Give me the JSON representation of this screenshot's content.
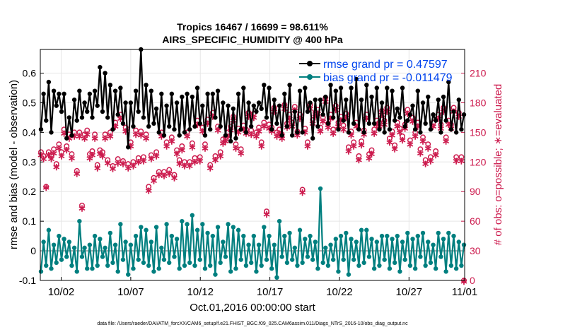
{
  "chart_data": {
    "type": "line",
    "title": "Tropics 16467 / 16699 = 98.611%",
    "subtitle": "AIRS_SPECIFIC_HUMIDITY @ 400 hPa",
    "xlabel": "Oct.01,2016 00:00:00 start",
    "ylabel": "rmse and bias (model - observation)",
    "ylabel_right": "# of obs: o=possible; ∗=evaluated",
    "footnote": "data file: /Users/raeder/DAI/ATM_forcXX/CAM6_setup/f.e21.FHIST_BGC.f09_025.CAM6assim.011/Diags_NTrS_2016-10/obs_diag_output.nc",
    "xlim": [
      0.5,
      31.0
    ],
    "ylim": [
      -0.1,
      0.68
    ],
    "ylim_right": [
      0,
      234
    ],
    "x_ticks": [
      2,
      7,
      12,
      17,
      22,
      27,
      32
    ],
    "x_tick_labels": [
      "10/02",
      "10/07",
      "10/12",
      "10/17",
      "10/22",
      "10/27",
      "11/01"
    ],
    "y_ticks": [
      -0.1,
      0,
      0.1,
      0.2,
      0.3,
      0.4,
      0.5,
      0.6
    ],
    "y_tick_labels": [
      "-0.1",
      "0",
      "0.1",
      "0.2",
      "0.3",
      "0.4",
      "0.5",
      "0.6"
    ],
    "y_right_ticks": [
      0,
      30,
      60,
      90,
      120,
      150,
      180,
      210
    ],
    "y_right_tick_labels": [
      "0",
      "30",
      "60",
      "90",
      "120",
      "150",
      "180",
      "210"
    ],
    "legend_position": "top-right",
    "colors": {
      "rmse": "#000000",
      "bias": "#007f7f",
      "obs": "#cc1a4d",
      "zero_line": "#aaaaaa",
      "legend_text": "#0044ee",
      "right_axis": "#cc1a4d"
    },
    "series": [
      {
        "name": "rmse grand pr = 0.47597",
        "axis": "left",
        "values": [
          0.41,
          0.53,
          0.44,
          0.57,
          0.4,
          0.54,
          0.49,
          0.53,
          0.47,
          0.53,
          0.38,
          0.45,
          0.39,
          0.51,
          0.44,
          0.54,
          0.45,
          0.5,
          0.47,
          0.53,
          0.45,
          0.54,
          0.49,
          0.62,
          0.47,
          0.6,
          0.45,
          0.56,
          0.41,
          0.54,
          0.46,
          0.55,
          0.43,
          0.5,
          0.35,
          0.5,
          0.42,
          0.54,
          0.47,
          0.68,
          0.45,
          0.56,
          0.42,
          0.54,
          0.43,
          0.48,
          0.4,
          0.53,
          0.39,
          0.49,
          0.42,
          0.53,
          0.41,
          0.5,
          0.39,
          0.52,
          0.4,
          0.53,
          0.41,
          0.52,
          0.42,
          0.55,
          0.43,
          0.49,
          0.39,
          0.53,
          0.41,
          0.53,
          0.45,
          0.54,
          0.42,
          0.5,
          0.39,
          0.49,
          0.37,
          0.48,
          0.38,
          0.53,
          0.41,
          0.55,
          0.4,
          0.5,
          0.42,
          0.49,
          0.47,
          0.5,
          0.48,
          0.56,
          0.45,
          0.55,
          0.41,
          0.51,
          0.43,
          0.49,
          0.39,
          0.53,
          0.42,
          0.56,
          0.39,
          0.47,
          0.4,
          0.54,
          0.4,
          0.55,
          0.47,
          0.5,
          0.38,
          0.51,
          0.42,
          0.51,
          0.46,
          0.52,
          0.43,
          0.56,
          0.45,
          0.54,
          0.41,
          0.55,
          0.44,
          0.51,
          0.4,
          0.55,
          0.43,
          0.58,
          0.41,
          0.51,
          0.4,
          0.56,
          0.43,
          0.52,
          0.43,
          0.55,
          0.41,
          0.5,
          0.4,
          0.55,
          0.41,
          0.54,
          0.44,
          0.48,
          0.45,
          0.55,
          0.42,
          0.44,
          0.46,
          0.49,
          0.41,
          0.54,
          0.4,
          0.5,
          0.43,
          0.52,
          0.41,
          0.46,
          0.44,
          0.51,
          0.4,
          0.52,
          0.44,
          0.57,
          0.41,
          0.47,
          0.4,
          0.51,
          0.41,
          0.46
        ]
      },
      {
        "name": "bias grand pr = -0.011479",
        "axis": "left",
        "values": [
          -0.07,
          0.03,
          -0.05,
          0.07,
          -0.06,
          0.02,
          -0.04,
          0.05,
          -0.03,
          0.04,
          -0.02,
          0.03,
          -0.05,
          0.01,
          -0.07,
          0.1,
          -0.02,
          0.01,
          -0.06,
          0.02,
          -0.06,
          0.05,
          -0.05,
          0.04,
          -0.02,
          0.01,
          -0.05,
          0.06,
          -0.04,
          0.02,
          -0.07,
          0.09,
          -0.03,
          0.03,
          -0.08,
          0.02,
          -0.06,
          0.05,
          -0.03,
          0.08,
          -0.04,
          0.07,
          -0.05,
          0.03,
          -0.07,
          0.08,
          -0.06,
          0.01,
          -0.03,
          0.09,
          -0.04,
          0.05,
          -0.02,
          0.04,
          -0.06,
          0.1,
          -0.05,
          0.09,
          -0.04,
          0.12,
          -0.05,
          0.07,
          -0.03,
          0.09,
          -0.06,
          0.06,
          -0.05,
          0.05,
          -0.08,
          0.08,
          -0.04,
          0.03,
          -0.02,
          0.09,
          -0.07,
          0.08,
          -0.06,
          0.07,
          -0.03,
          0.05,
          -0.05,
          0.02,
          -0.04,
          0.05,
          -0.07,
          0.02,
          -0.05,
          0.08,
          -0.03,
          0.05,
          -0.06,
          0.02,
          -0.09,
          0.1,
          -0.02,
          0.05,
          -0.04,
          0.06,
          -0.03,
          0.01,
          -0.05,
          0.07,
          -0.04,
          0.04,
          -0.02,
          0.05,
          -0.03,
          0.03,
          -0.06,
          0.21,
          -0.04,
          0.01,
          -0.05,
          0.02,
          -0.03,
          0.04,
          -0.07,
          0.05,
          -0.03,
          0.06,
          -0.08,
          0.04,
          -0.03,
          0.03,
          -0.05,
          0.07,
          -0.04,
          0.07,
          -0.02,
          0.04,
          -0.06,
          0.03,
          -0.05,
          0.05,
          -0.03,
          0.05,
          -0.06,
          0.04,
          -0.04,
          0.05,
          -0.07,
          0.03,
          -0.03,
          0.06,
          -0.05,
          0.04,
          -0.06,
          0.05,
          -0.02,
          0.06,
          -0.05,
          0.03,
          -0.04,
          0.02,
          -0.06,
          0.06,
          -0.02,
          0.04,
          -0.07,
          0.06,
          -0.05,
          0.05,
          -0.06,
          0.03,
          -0.05,
          0.02
        ]
      },
      {
        "name": "# obs possible",
        "axis": "right",
        "marker": "o",
        "values": [
          130,
          126,
          95,
          130,
          127,
          133,
          118,
          138,
          130,
          153,
          136,
          148,
          128,
          150,
          111,
          150,
          76,
          148,
          152,
          128,
          131,
          148,
          117,
          132,
          130,
          148,
          122,
          150,
          116,
          160,
          123,
          168,
          121,
          155,
          118,
          140,
          120,
          152,
          124,
          151,
          125,
          148,
          95,
          127,
          104,
          130,
          110,
          150,
          110,
          140,
          112,
          145,
          107,
          132,
          122,
          136,
          120,
          150,
          120,
          139,
          124,
          162,
          125,
          155,
          138,
          163,
          117,
          170,
          126,
          156,
          130,
          143,
          145,
          150,
          156,
          166,
          138,
          154,
          133,
          157,
          153,
          170,
          152,
          169,
          150,
          155,
          140,
          160,
          70,
          158,
          155,
          175,
          150,
          153,
          148,
          178,
          159,
          168,
          160,
          176,
          151,
          168,
          92,
          154,
          140,
          178,
          163,
          170,
          173,
          155,
          165,
          185,
          159,
          168,
          153,
          177,
          160,
          166,
          157,
          169,
          135,
          151,
          140,
          160,
          126,
          141,
          152,
          168,
          128,
          132,
          153,
          162,
          160,
          172,
          162,
          175,
          144,
          151,
          137,
          160,
          154,
          146,
          158,
          173,
          142,
          165,
          150,
          160,
          133,
          145,
          122,
          138,
          125,
          160,
          131,
          168,
          158,
          175,
          145,
          162,
          158,
          175,
          125,
          170,
          125,
          0
        ]
      },
      {
        "name": "# obs evaluated",
        "axis": "right",
        "marker": "*",
        "values": [
          128,
          124,
          95,
          128,
          124,
          130,
          116,
          135,
          127,
          150,
          133,
          145,
          125,
          147,
          109,
          147,
          74,
          145,
          149,
          125,
          128,
          145,
          115,
          129,
          127,
          145,
          120,
          147,
          114,
          157,
          120,
          165,
          119,
          152,
          115,
          137,
          117,
          149,
          121,
          148,
          122,
          145,
          92,
          124,
          102,
          127,
          108,
          147,
          107,
          137,
          109,
          142,
          105,
          129,
          119,
          133,
          117,
          147,
          117,
          136,
          121,
          159,
          122,
          152,
          135,
          160,
          115,
          167,
          123,
          153,
          127,
          140,
          142,
          147,
          153,
          163,
          135,
          151,
          130,
          154,
          150,
          167,
          149,
          166,
          147,
          152,
          137,
          157,
          68,
          155,
          152,
          172,
          147,
          150,
          145,
          175,
          156,
          165,
          157,
          173,
          148,
          165,
          90,
          151,
          137,
          175,
          160,
          167,
          170,
          152,
          162,
          182,
          156,
          165,
          150,
          174,
          157,
          163,
          154,
          166,
          132,
          148,
          137,
          157,
          123,
          138,
          149,
          165,
          125,
          129,
          150,
          159,
          157,
          169,
          159,
          172,
          141,
          148,
          134,
          157,
          151,
          143,
          155,
          170,
          139,
          162,
          147,
          157,
          130,
          142,
          119,
          135,
          122,
          157,
          128,
          165,
          155,
          172,
          142,
          159,
          155,
          172,
          122,
          167,
          122,
          0
        ]
      }
    ]
  }
}
